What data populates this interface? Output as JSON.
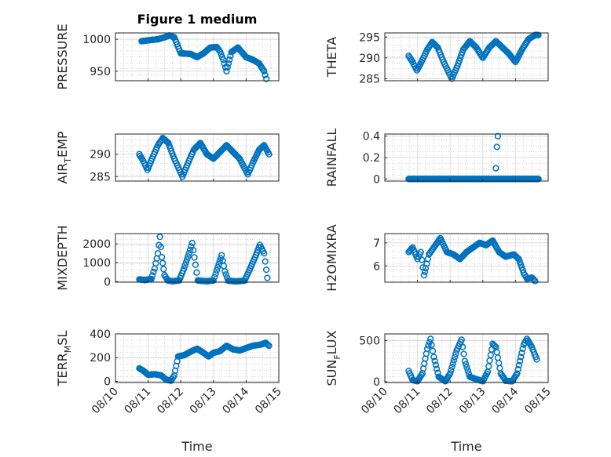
{
  "figure": {
    "title": "Figure 1 medium",
    "xlabel": "Time",
    "marker_color": "#0072BD"
  },
  "chart_data": [
    {
      "type": "scatter",
      "ylabel": "PRESSURE",
      "ylabel_sub": null,
      "xlim": [
        0,
        5
      ],
      "ylim": [
        935,
        1010
      ],
      "yticks": [
        950,
        1000
      ],
      "xticks": [
        "08/10",
        "08/11",
        "08/12",
        "08/13",
        "08/14",
        "08/15"
      ],
      "grid": true,
      "marker": "circle",
      "knots": [
        [
          0.8,
          997
        ],
        [
          1.1,
          999
        ],
        [
          1.3,
          1000
        ],
        [
          1.5,
          1003
        ],
        [
          1.65,
          1006
        ],
        [
          1.8,
          1003
        ],
        [
          2.0,
          978
        ],
        [
          2.3,
          977
        ],
        [
          2.5,
          972
        ],
        [
          2.7,
          978
        ],
        [
          2.9,
          987
        ],
        [
          3.1,
          988
        ],
        [
          3.2,
          981
        ],
        [
          3.3,
          968
        ],
        [
          3.4,
          950
        ],
        [
          3.55,
          980
        ],
        [
          3.75,
          987
        ],
        [
          4.0,
          972
        ],
        [
          4.2,
          968
        ],
        [
          4.4,
          962
        ],
        [
          4.55,
          950
        ],
        [
          4.62,
          938
        ]
      ]
    },
    {
      "type": "scatter",
      "ylabel": "THETA",
      "ylabel_sub": null,
      "xlim": [
        0,
        5
      ],
      "ylim": [
        284.5,
        296
      ],
      "yticks": [
        285,
        290,
        295
      ],
      "xticks": [
        "08/10",
        "08/11",
        "08/12",
        "08/13",
        "08/14",
        "08/15"
      ],
      "grid": true,
      "marker": "circle",
      "knots": [
        [
          0.73,
          290.5
        ],
        [
          0.85,
          289
        ],
        [
          0.98,
          287
        ],
        [
          1.12,
          289
        ],
        [
          1.3,
          292
        ],
        [
          1.45,
          293.8
        ],
        [
          1.62,
          292.5
        ],
        [
          1.8,
          289
        ],
        [
          2.05,
          285
        ],
        [
          2.22,
          288
        ],
        [
          2.4,
          292
        ],
        [
          2.6,
          294
        ],
        [
          2.8,
          292.5
        ],
        [
          3.0,
          290
        ],
        [
          3.2,
          292.5
        ],
        [
          3.4,
          294
        ],
        [
          3.6,
          292.5
        ],
        [
          3.8,
          291
        ],
        [
          4.0,
          289
        ],
        [
          4.2,
          292
        ],
        [
          4.4,
          294.5
        ],
        [
          4.6,
          295.5
        ],
        [
          4.7,
          295.5
        ]
      ]
    },
    {
      "type": "scatter",
      "ylabel": "AIR",
      "ylabel_sub": "T",
      "ylabel_tail": "EMP",
      "xlim": [
        0,
        5
      ],
      "ylim": [
        284,
        294.5
      ],
      "yticks": [
        285,
        290
      ],
      "xticks": [
        "08/10",
        "08/11",
        "08/12",
        "08/13",
        "08/14",
        "08/15"
      ],
      "grid": true,
      "marker": "circle",
      "knots": [
        [
          0.73,
          290
        ],
        [
          0.85,
          288.5
        ],
        [
          0.98,
          286.5
        ],
        [
          1.12,
          289
        ],
        [
          1.3,
          292
        ],
        [
          1.45,
          293.6
        ],
        [
          1.62,
          292.5
        ],
        [
          1.8,
          289
        ],
        [
          2.05,
          285
        ],
        [
          2.22,
          288
        ],
        [
          2.4,
          291
        ],
        [
          2.6,
          292.5
        ],
        [
          2.8,
          290
        ],
        [
          3.0,
          289
        ],
        [
          3.2,
          290.5
        ],
        [
          3.4,
          292
        ],
        [
          3.6,
          290.5
        ],
        [
          3.8,
          289
        ],
        [
          4.05,
          285.5
        ],
        [
          4.2,
          288
        ],
        [
          4.4,
          291
        ],
        [
          4.55,
          292
        ],
        [
          4.7,
          290
        ]
      ]
    },
    {
      "type": "scatter",
      "ylabel": "RAINFALL",
      "ylabel_sub": null,
      "xlim": [
        0,
        5
      ],
      "ylim": [
        -0.02,
        0.42
      ],
      "yticks": [
        0,
        0.2,
        0.4
      ],
      "xticks": [
        "08/10",
        "08/11",
        "08/12",
        "08/13",
        "08/14",
        "08/15"
      ],
      "grid": true,
      "marker": "circle",
      "baseline": {
        "from": 0.73,
        "to": 4.72,
        "value": 0
      },
      "points": [
        [
          3.4,
          0.1
        ],
        [
          3.43,
          0.3
        ],
        [
          3.46,
          0.4
        ]
      ]
    },
    {
      "type": "scatter",
      "ylabel": "MIXDEPTH",
      "ylabel_sub": null,
      "xlim": [
        0,
        5
      ],
      "ylim": [
        -30,
        2550
      ],
      "yticks": [
        0,
        1000,
        2000
      ],
      "xticks": [
        "08/10",
        "08/11",
        "08/12",
        "08/13",
        "08/14",
        "08/15"
      ],
      "grid": true,
      "marker": "circle",
      "knots": [
        [
          0.73,
          120
        ],
        [
          0.9,
          80
        ],
        [
          1.1,
          140
        ],
        [
          1.2,
          700
        ],
        [
          1.3,
          1500
        ],
        [
          1.36,
          2380
        ],
        [
          1.42,
          1300
        ],
        [
          1.5,
          350
        ],
        [
          1.6,
          60
        ],
        [
          1.75,
          20
        ],
        [
          1.95,
          60
        ],
        [
          2.1,
          700
        ],
        [
          2.25,
          1500
        ],
        [
          2.35,
          2050
        ],
        [
          2.45,
          900
        ],
        [
          2.52,
          60
        ],
        [
          2.8,
          20
        ],
        [
          3.0,
          60
        ],
        [
          3.1,
          600
        ],
        [
          3.25,
          1400
        ],
        [
          3.35,
          550
        ],
        [
          3.45,
          50
        ],
        [
          3.7,
          10
        ],
        [
          3.95,
          50
        ],
        [
          4.1,
          600
        ],
        [
          4.3,
          1400
        ],
        [
          4.42,
          1950
        ],
        [
          4.55,
          1500
        ],
        [
          4.65,
          200
        ]
      ]
    },
    {
      "type": "scatter",
      "ylabel": "H2OMIXRA",
      "ylabel_sub": null,
      "xlim": [
        0,
        5
      ],
      "ylim": [
        5.3,
        7.4
      ],
      "yticks": [
        6,
        7
      ],
      "xticks": [
        "08/10",
        "08/11",
        "08/12",
        "08/13",
        "08/14",
        "08/15"
      ],
      "grid": true,
      "marker": "circle",
      "knots": [
        [
          0.73,
          6.6
        ],
        [
          0.85,
          6.8
        ],
        [
          1.0,
          6.3
        ],
        [
          1.1,
          6.6
        ],
        [
          1.2,
          5.6
        ],
        [
          1.25,
          5.9
        ],
        [
          1.35,
          6.5
        ],
        [
          1.5,
          6.8
        ],
        [
          1.7,
          7.2
        ],
        [
          1.9,
          6.6
        ],
        [
          2.1,
          6.5
        ],
        [
          2.3,
          6.3
        ],
        [
          2.5,
          6.6
        ],
        [
          2.7,
          6.8
        ],
        [
          2.9,
          7.0
        ],
        [
          3.1,
          6.9
        ],
        [
          3.3,
          7.1
        ],
        [
          3.5,
          6.6
        ],
        [
          3.7,
          6.4
        ],
        [
          3.95,
          6.5
        ],
        [
          4.1,
          6.3
        ],
        [
          4.25,
          5.7
        ],
        [
          4.35,
          5.45
        ],
        [
          4.5,
          5.5
        ],
        [
          4.6,
          5.35
        ]
      ]
    },
    {
      "type": "scatter",
      "ylabel": "TERR",
      "ylabel_sub": "M",
      "ylabel_tail": "SL",
      "xlim": [
        0,
        5
      ],
      "ylim": [
        -10,
        400
      ],
      "yticks": [
        0,
        200,
        400
      ],
      "xticks": [
        "08/10",
        "08/11",
        "08/12",
        "08/13",
        "08/14",
        "08/15"
      ],
      "grid": true,
      "marker": "circle",
      "knots": [
        [
          0.73,
          110
        ],
        [
          0.85,
          90
        ],
        [
          1.0,
          55
        ],
        [
          1.2,
          60
        ],
        [
          1.4,
          50
        ],
        [
          1.55,
          15
        ],
        [
          1.7,
          5
        ],
        [
          1.8,
          50
        ],
        [
          1.92,
          210
        ],
        [
          2.1,
          220
        ],
        [
          2.3,
          250
        ],
        [
          2.5,
          275
        ],
        [
          2.7,
          240
        ],
        [
          2.85,
          210
        ],
        [
          3.0,
          240
        ],
        [
          3.2,
          255
        ],
        [
          3.4,
          300
        ],
        [
          3.6,
          270
        ],
        [
          3.8,
          260
        ],
        [
          4.0,
          280
        ],
        [
          4.2,
          300
        ],
        [
          4.45,
          310
        ],
        [
          4.6,
          325
        ],
        [
          4.7,
          300
        ]
      ]
    },
    {
      "type": "scatter",
      "ylabel": "SUN",
      "ylabel_sub": "F",
      "ylabel_tail": "LUX",
      "xlim": [
        0,
        5
      ],
      "ylim": [
        -10,
        580
      ],
      "yticks": [
        0,
        500
      ],
      "xticks": [
        "08/10",
        "08/11",
        "08/12",
        "08/13",
        "08/14",
        "08/15"
      ],
      "grid": true,
      "marker": "circle",
      "knots": [
        [
          0.73,
          130
        ],
        [
          0.85,
          20
        ],
        [
          1.0,
          5
        ],
        [
          1.15,
          100
        ],
        [
          1.3,
          400
        ],
        [
          1.4,
          520
        ],
        [
          1.5,
          300
        ],
        [
          1.65,
          60
        ],
        [
          1.85,
          5
        ],
        [
          2.0,
          100
        ],
        [
          2.2,
          380
        ],
        [
          2.35,
          510
        ],
        [
          2.45,
          250
        ],
        [
          2.6,
          60
        ],
        [
          2.8,
          30
        ],
        [
          3.0,
          5
        ],
        [
          3.15,
          120
        ],
        [
          3.3,
          460
        ],
        [
          3.4,
          420
        ],
        [
          3.55,
          100
        ],
        [
          3.7,
          10
        ],
        [
          3.9,
          5
        ],
        [
          4.05,
          100
        ],
        [
          4.25,
          450
        ],
        [
          4.35,
          520
        ],
        [
          4.5,
          420
        ],
        [
          4.65,
          270
        ]
      ]
    }
  ]
}
